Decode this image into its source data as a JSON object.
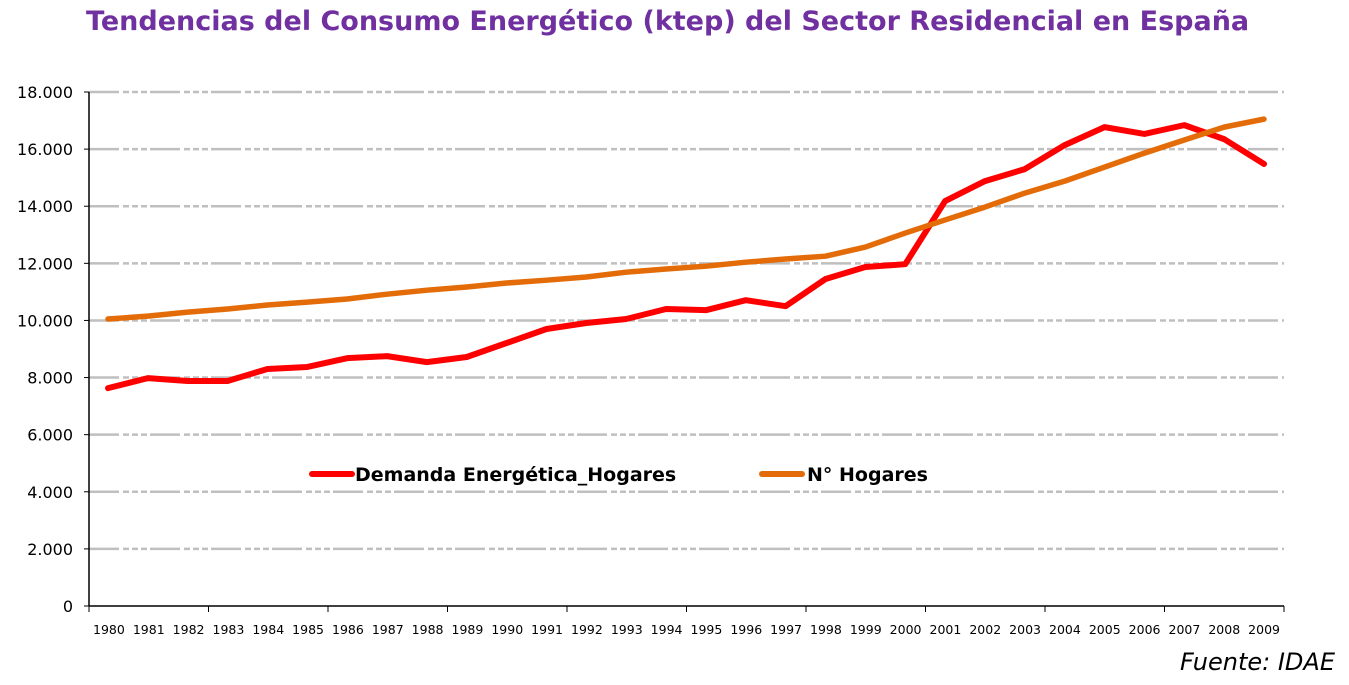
{
  "chart_data": {
    "type": "line",
    "title": "Tendencias del Consumo Energético (ktep) del Sector Residencial en España",
    "source": "Fuente: IDAE",
    "xlabel": "",
    "ylabel": "",
    "ylim": [
      0,
      18000
    ],
    "yticks": [
      "0",
      "2.000",
      "4.000",
      "6.000",
      "8.000",
      "10.000",
      "12.000",
      "14.000",
      "16.000",
      "18.000"
    ],
    "grid": true,
    "legend_position": "center",
    "categories": [
      "1980",
      "1981",
      "1982",
      "1983",
      "1984",
      "1985",
      "1986",
      "1987",
      "1988",
      "1989",
      "1990",
      "1991",
      "1992",
      "1993",
      "1994",
      "1995",
      "1996",
      "1997",
      "1998",
      "1999",
      "2000",
      "2001",
      "2002",
      "2003",
      "2004",
      "2005",
      "2006",
      "2007",
      "2008",
      "2009"
    ],
    "series": [
      {
        "name": "Demanda Energética_Hogares",
        "color": "#ff0000",
        "values": [
          7630,
          7980,
          7880,
          7880,
          8300,
          8370,
          8680,
          8750,
          8540,
          8720,
          9210,
          9700,
          9910,
          10050,
          10400,
          10360,
          10710,
          10500,
          11450,
          11870,
          11970,
          14180,
          14880,
          15300,
          16140,
          16770,
          16530,
          16840,
          16350,
          15480
        ]
      },
      {
        "name": "N° Hogares",
        "color": "#e36c09",
        "values": [
          10050,
          10150,
          10290,
          10400,
          10540,
          10640,
          10750,
          10920,
          11060,
          11170,
          11310,
          11410,
          11520,
          11690,
          11800,
          11900,
          12040,
          12150,
          12250,
          12570,
          13060,
          13520,
          13970,
          14460,
          14880,
          15370,
          15860,
          16320,
          16770,
          17050
        ]
      }
    ]
  }
}
